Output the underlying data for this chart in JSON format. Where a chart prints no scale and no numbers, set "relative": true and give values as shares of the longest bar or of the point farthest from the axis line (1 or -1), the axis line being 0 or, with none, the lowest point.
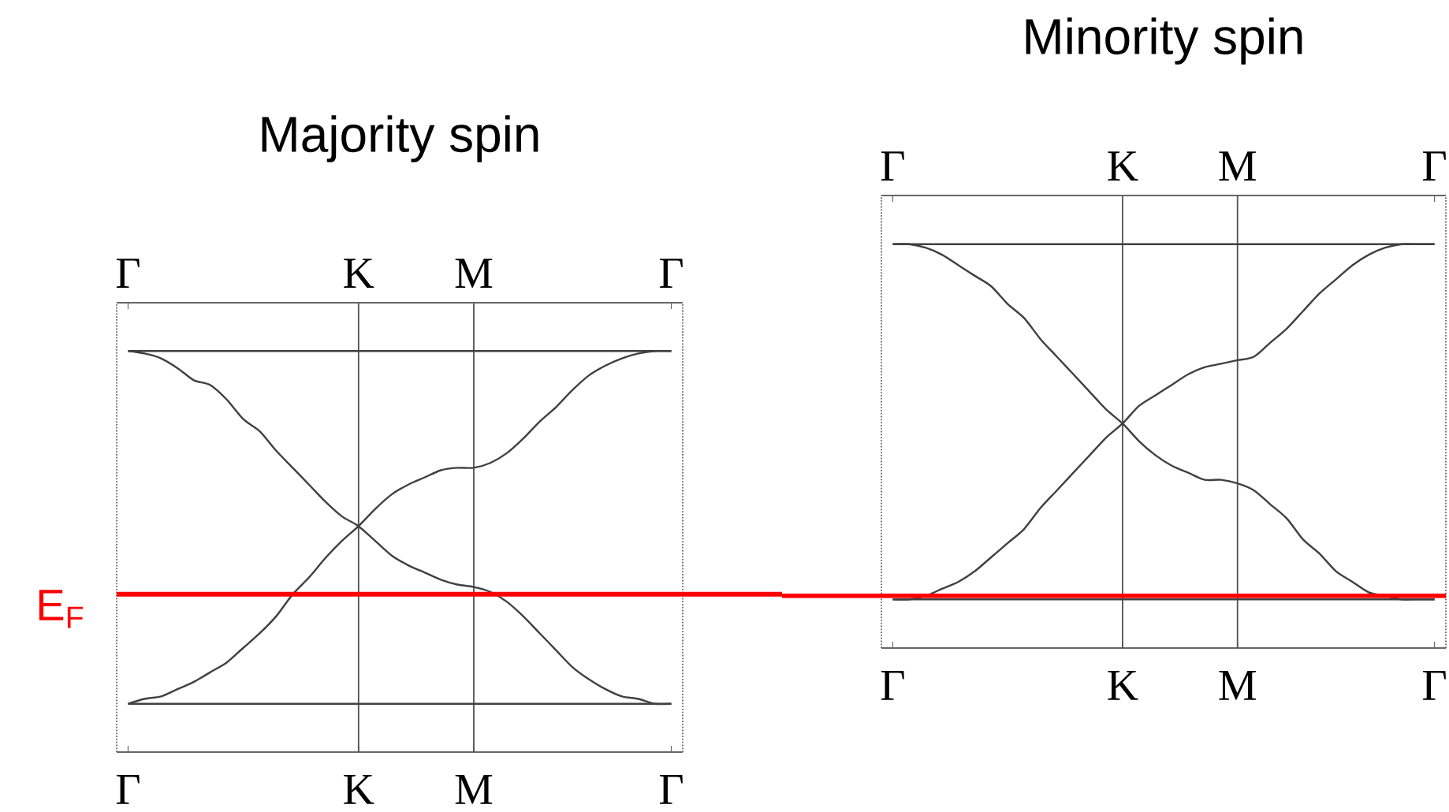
{
  "chart_data": [
    {
      "type": "line",
      "title": "Majority spin",
      "relative": true,
      "categories": [
        "Γ",
        null,
        null,
        null,
        null,
        null,
        null,
        null,
        null,
        null,
        null,
        null,
        null,
        null,
        "K",
        null,
        null,
        null,
        null,
        null,
        null,
        "M",
        null,
        null,
        null,
        null,
        null,
        null,
        null,
        null,
        null,
        null,
        null,
        "Γ"
      ],
      "series": [
        {
          "color": "#404040",
          "values": [
            1,
            1,
            1,
            1,
            1,
            1,
            1,
            1,
            1,
            1,
            1,
            1,
            1,
            1,
            1,
            1,
            1,
            1,
            1,
            1,
            1,
            1,
            1,
            1,
            1,
            1,
            1,
            1,
            1,
            1,
            1,
            1,
            1,
            1
          ]
        },
        {
          "color": "#404040",
          "values": [
            -0.45,
            -0.45,
            -0.45,
            -0.45,
            -0.45,
            -0.45,
            -0.45,
            -0.45,
            -0.45,
            -0.45,
            -0.45,
            -0.45,
            -0.45,
            -0.45,
            -0.45,
            -0.45,
            -0.45,
            -0.45,
            -0.45,
            -0.45,
            -0.45,
            -0.45,
            -0.45,
            -0.45,
            -0.45,
            -0.45,
            -0.45,
            -0.45,
            -0.45,
            -0.45,
            -0.45,
            -0.45,
            -0.45,
            -0.45
          ]
        },
        {
          "color": "#404040",
          "values": [
            1,
            0.99,
            0.97,
            0.93,
            0.88,
            0.86,
            0.8,
            0.72,
            0.67,
            0.59,
            0.52,
            0.45,
            0.38,
            0.32,
            0.28,
            0.22,
            0.16,
            0.12,
            0.09,
            0.06,
            0.04,
            0.03,
            0.01,
            -0.03,
            -0.09,
            -0.16,
            -0.23,
            -0.3,
            -0.35,
            -0.39,
            -0.42,
            -0.43,
            -0.45,
            -0.45
          ]
        },
        {
          "color": "#404040",
          "values": [
            -0.45,
            -0.43,
            -0.42,
            -0.39,
            -0.36,
            -0.32,
            -0.28,
            -0.22,
            -0.16,
            -0.09,
            0,
            0.07,
            0.15,
            0.22,
            0.28,
            0.35,
            0.41,
            0.45,
            0.48,
            0.51,
            0.52,
            0.52,
            0.54,
            0.58,
            0.64,
            0.71,
            0.77,
            0.84,
            0.9,
            0.94,
            0.97,
            0.99,
            1,
            1
          ]
        }
      ],
      "ref_lines": [
        {
          "axis": "x",
          "value": "K",
          "color": "#505050"
        },
        {
          "axis": "x",
          "value": "M",
          "color": "#505050"
        },
        {
          "axis": "y",
          "value": 0,
          "label": "E$_{F}$",
          "color": "#ff0000"
        }
      ]
    },
    {
      "type": "line",
      "title": "Minority spin",
      "relative": true,
      "categories": [
        "Γ",
        null,
        null,
        null,
        null,
        null,
        null,
        null,
        null,
        null,
        null,
        null,
        null,
        null,
        "K",
        null,
        null,
        null,
        null,
        null,
        null,
        "M",
        null,
        null,
        null,
        null,
        null,
        null,
        null,
        null,
        null,
        null,
        null,
        "Γ"
      ],
      "series": [
        {
          "color": "#404040",
          "values": [
            1,
            1,
            1,
            1,
            1,
            1,
            1,
            1,
            1,
            1,
            1,
            1,
            1,
            1,
            1,
            1,
            1,
            1,
            1,
            1,
            1,
            1,
            1,
            1,
            1,
            1,
            1,
            1,
            1,
            1,
            1,
            1,
            1,
            1
          ]
        },
        {
          "color": "#404040",
          "values": [
            -0.01,
            -0.01,
            -0.01,
            -0.01,
            -0.01,
            -0.01,
            -0.01,
            -0.01,
            -0.01,
            -0.01,
            -0.01,
            -0.01,
            -0.01,
            -0.01,
            -0.01,
            -0.01,
            -0.01,
            -0.01,
            -0.01,
            -0.01,
            -0.01,
            -0.01,
            -0.01,
            -0.01,
            -0.01,
            -0.01,
            -0.01,
            -0.01,
            -0.01,
            -0.01,
            -0.01,
            -0.01,
            -0.01,
            -0.01
          ]
        },
        {
          "color": "#404040",
          "values": [
            1,
            1,
            0.99,
            0.97,
            0.94,
            0.91,
            0.88,
            0.83,
            0.79,
            0.73,
            0.68,
            0.63,
            0.58,
            0.53,
            0.49,
            0.44,
            0.4,
            0.37,
            0.35,
            0.33,
            0.33,
            0.32,
            0.3,
            0.26,
            0.22,
            0.16,
            0.12,
            0.07,
            0.04,
            0.01,
            0,
            -0.01,
            -0.01,
            -0.01
          ]
        },
        {
          "color": "#404040",
          "values": [
            -0.01,
            -0.01,
            0,
            0.02,
            0.04,
            0.07,
            0.11,
            0.15,
            0.19,
            0.25,
            0.3,
            0.35,
            0.4,
            0.45,
            0.49,
            0.54,
            0.57,
            0.6,
            0.63,
            0.65,
            0.66,
            0.67,
            0.68,
            0.72,
            0.76,
            0.81,
            0.86,
            0.9,
            0.94,
            0.97,
            0.99,
            1,
            1,
            1
          ]
        }
      ],
      "ref_lines": [
        {
          "axis": "x",
          "value": "K",
          "color": "#505050"
        },
        {
          "axis": "x",
          "value": "M",
          "color": "#505050"
        },
        {
          "axis": "y",
          "value": 0,
          "color": "#ff0000"
        }
      ]
    }
  ]
}
